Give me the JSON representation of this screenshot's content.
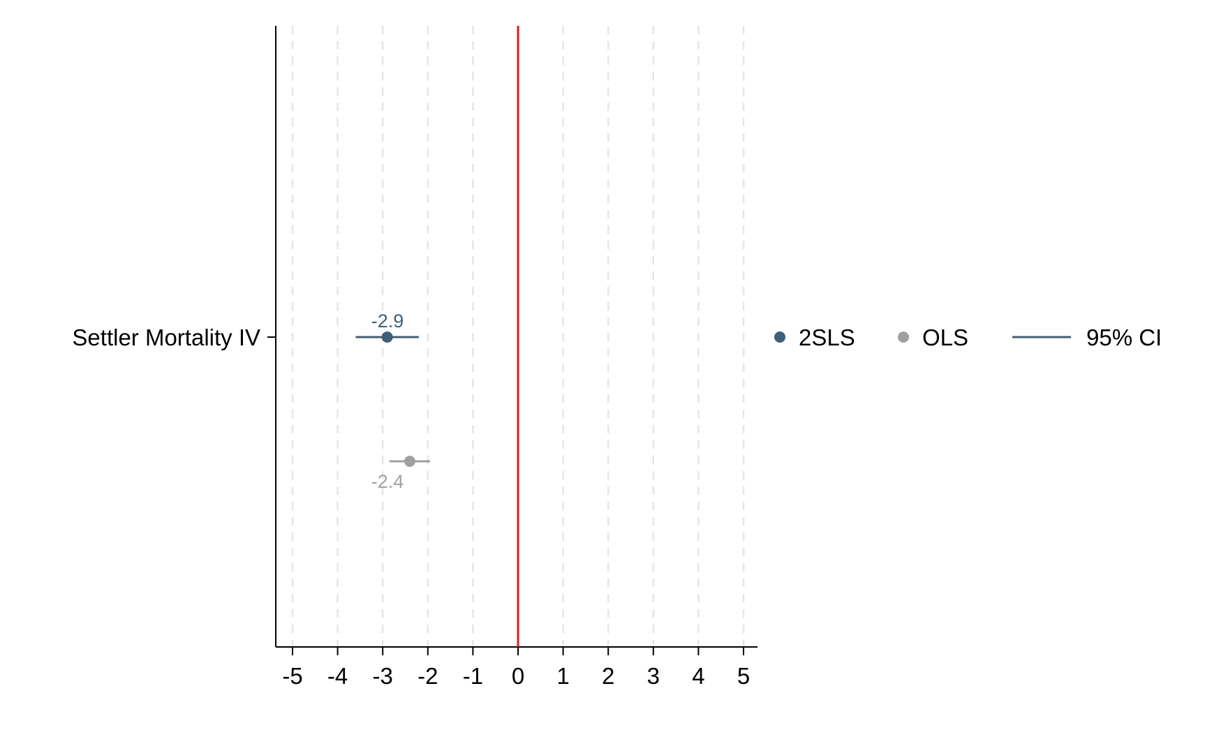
{
  "chart_data": {
    "type": "scatter",
    "subtype": "coefficient-plot",
    "title": "",
    "xlabel": "",
    "ylabel": "",
    "xlim": [
      -5,
      5
    ],
    "xticks": [
      -5,
      -4,
      -3,
      -2,
      -1,
      0,
      1,
      2,
      3,
      4,
      5
    ],
    "xtick_labels": [
      "-5",
      "-4",
      "-3",
      "-2",
      "-1",
      "0",
      "1",
      "2",
      "3",
      "4",
      "5"
    ],
    "grid": "vertical dashed",
    "reference_line": {
      "x": 0,
      "color": "#e41a1c"
    },
    "categories": [
      "Settler Mortality IV"
    ],
    "series": [
      {
        "name": "2SLS",
        "color": "#3e5f7a",
        "points": [
          {
            "category": "Settler Mortality IV",
            "estimate": -2.9,
            "ci_low": -3.6,
            "ci_high": -2.2,
            "label": "-2.9"
          }
        ]
      },
      {
        "name": "OLS",
        "color": "#a0a0a0",
        "points": [
          {
            "category": "Settler Mortality IV",
            "estimate": -2.4,
            "ci_low": -2.85,
            "ci_high": -1.95,
            "label": "-2.4"
          }
        ]
      }
    ],
    "legend": {
      "placement": "right",
      "entries": [
        {
          "label": "2SLS",
          "symbol": "dot",
          "color": "#3e5f7a"
        },
        {
          "label": "OLS",
          "symbol": "dot",
          "color": "#a0a0a0"
        },
        {
          "label": "95% CI",
          "symbol": "line",
          "color": "#3e5f7a"
        }
      ]
    }
  }
}
